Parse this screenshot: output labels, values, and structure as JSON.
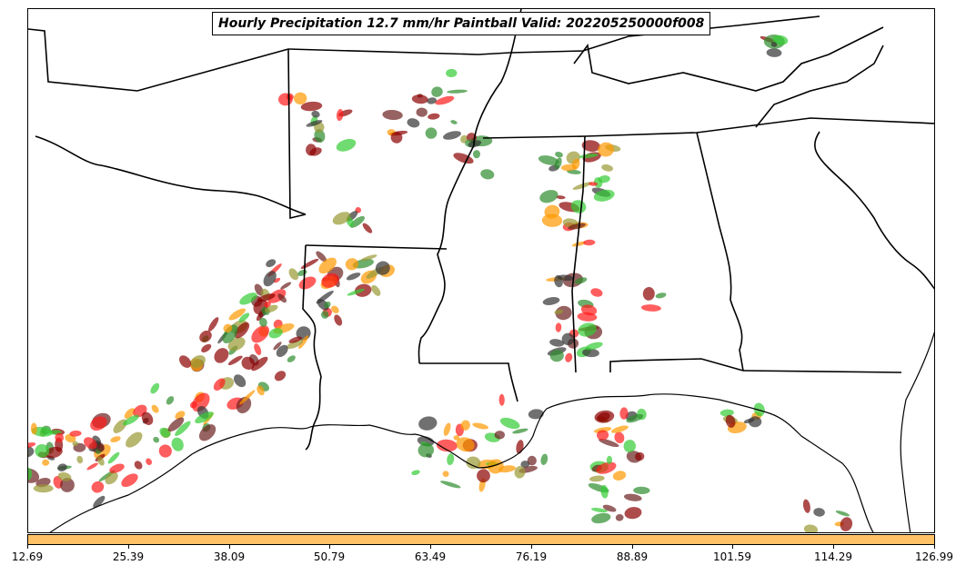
{
  "title": "Hourly Precipitation 12.7 mm/hr Paintball Valid: 202205250000f008",
  "colorbar": {
    "color": "#ffc266",
    "tick_labels": [
      "12.69",
      "25.39",
      "38.09",
      "50.79",
      "63.49",
      "76.19",
      "88.89",
      "101.59",
      "114.29",
      "126.99"
    ]
  },
  "member_colors": [
    "#ff1a1a",
    "#8b0000",
    "#2e8b2e",
    "#33cc33",
    "#ff9900",
    "#999933",
    "#6b2020",
    "#333333"
  ]
}
